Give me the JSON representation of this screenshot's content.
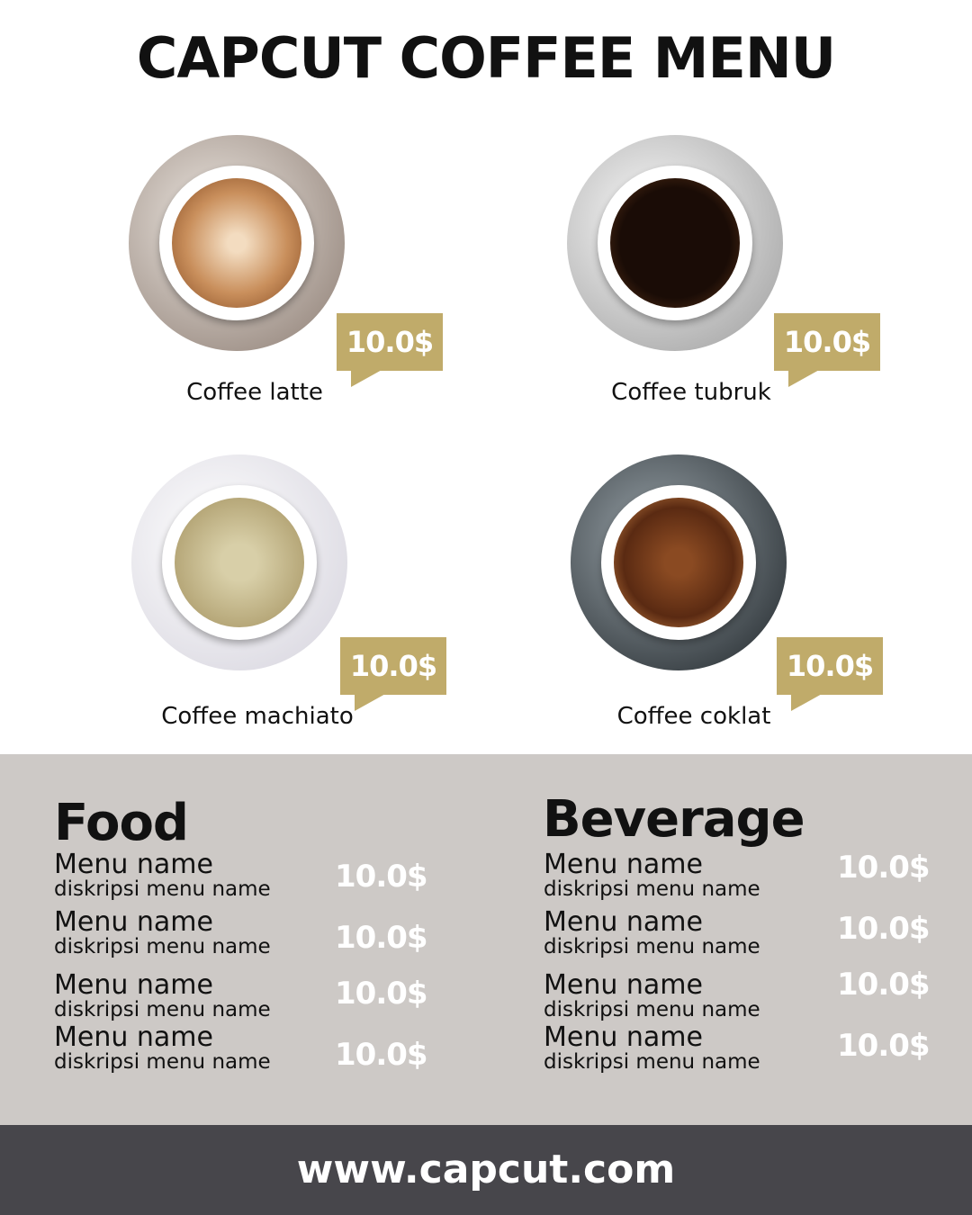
{
  "title": "CAPCUT COFFEE MENU",
  "colors": {
    "accent": "#c0ab6a",
    "panel": "#cdc9c6",
    "footer": "#47464b"
  },
  "featured": [
    {
      "name": "Coffee latte",
      "price": "10.0$"
    },
    {
      "name": "Coffee tubruk",
      "price": "10.0$"
    },
    {
      "name": "Coffee machiato",
      "price": "10.0$"
    },
    {
      "name": "Coffee coklat",
      "price": "10.0$"
    }
  ],
  "food": {
    "heading": "Food",
    "items": [
      {
        "name": "Menu name",
        "desc": "diskripsi menu name",
        "price": "10.0$"
      },
      {
        "name": "Menu name",
        "desc": "diskripsi menu name",
        "price": "10.0$"
      },
      {
        "name": "Menu name",
        "desc": "diskripsi menu name",
        "price": "10.0$"
      },
      {
        "name": "Menu name",
        "desc": "diskripsi menu name",
        "price": "10.0$"
      }
    ]
  },
  "beverage": {
    "heading": "Beverage",
    "items": [
      {
        "name": "Menu name",
        "desc": "diskripsi menu name",
        "price": "10.0$"
      },
      {
        "name": "Menu name",
        "desc": "diskripsi menu name",
        "price": "10.0$"
      },
      {
        "name": "Menu name",
        "desc": "diskripsi menu name",
        "price": "10.0$"
      },
      {
        "name": "Menu name",
        "desc": "diskripsi menu name",
        "price": "10.0$"
      }
    ]
  },
  "footer": {
    "url": "www.capcut.com"
  }
}
